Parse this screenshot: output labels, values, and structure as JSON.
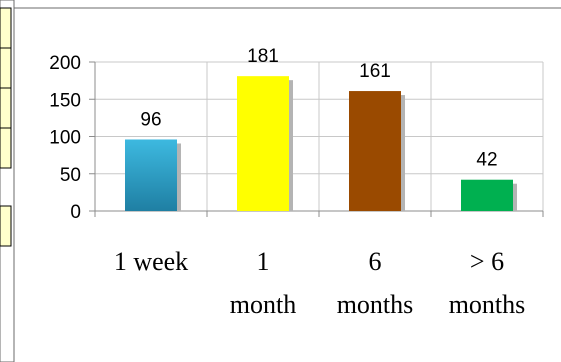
{
  "chart_data": {
    "type": "bar",
    "title": "",
    "xlabel": "",
    "ylabel": "",
    "categories": [
      [
        "1 week"
      ],
      [
        "1",
        "month"
      ],
      [
        "6",
        "months"
      ],
      [
        "> 6",
        "months"
      ]
    ],
    "values": [
      96,
      181,
      161,
      42
    ],
    "data_labels": [
      "96",
      "181",
      "161",
      "42"
    ],
    "colors": [
      "#2e9ac4",
      "#ffff00",
      "#9a4a00",
      "#00b050"
    ],
    "ylim": [
      0,
      200
    ],
    "yticks": [
      "0",
      "50",
      "100",
      "150",
      "200"
    ],
    "grid": true,
    "legend": "none"
  }
}
